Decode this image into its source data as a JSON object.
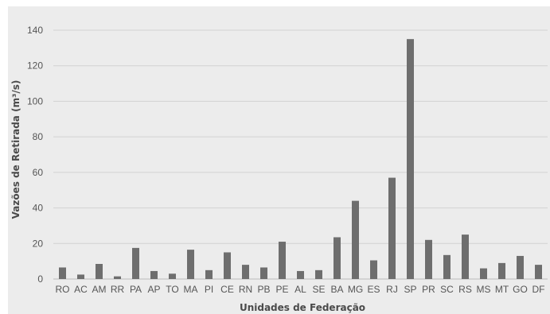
{
  "chart_data": {
    "type": "bar",
    "title": "",
    "xlabel": "Unidades de Federação",
    "ylabel": "Vazões de Retirada (m³/s)",
    "ylim": [
      0,
      140
    ],
    "yticks": [
      0,
      20,
      40,
      60,
      80,
      100,
      120,
      140
    ],
    "grid": true,
    "legend": "none",
    "bar_color": "#6e6e6e",
    "categories": [
      "RO",
      "AC",
      "AM",
      "RR",
      "PA",
      "AP",
      "TO",
      "MA",
      "PI",
      "CE",
      "RN",
      "PB",
      "PE",
      "AL",
      "SE",
      "BA",
      "MG",
      "ES",
      "RJ",
      "SP",
      "PR",
      "SC",
      "RS",
      "MS",
      "MT",
      "GO",
      "DF"
    ],
    "values": [
      6.5,
      2.5,
      8.5,
      1.5,
      17.5,
      4.5,
      3,
      16.5,
      5,
      15,
      8,
      6.5,
      21,
      4.5,
      5,
      23.5,
      44,
      10.5,
      57,
      135,
      22,
      13.5,
      25,
      6,
      9,
      13,
      8
    ]
  }
}
